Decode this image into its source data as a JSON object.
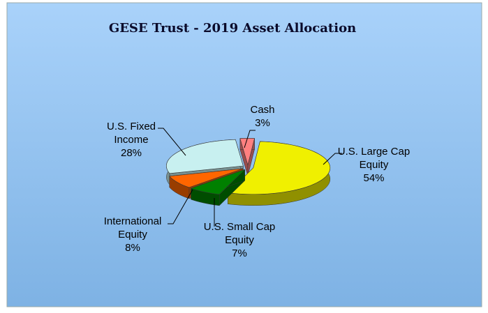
{
  "chart_data": {
    "type": "pie3d",
    "title": "GESE Trust - 2019 Asset Allocation",
    "categories": [
      "U.S. Large Cap Equity",
      "U.S. Small Cap Equity",
      "International Equity",
      "U.S. Fixed Income",
      "Cash"
    ],
    "values": [
      54,
      7,
      8,
      28,
      3
    ],
    "value_labels": [
      "54%",
      "7%",
      "8%",
      "28%",
      "3%"
    ],
    "colors": [
      "#f0f000",
      "#008000",
      "#ff6600",
      "#c8f0f0",
      "#ff8080"
    ]
  }
}
